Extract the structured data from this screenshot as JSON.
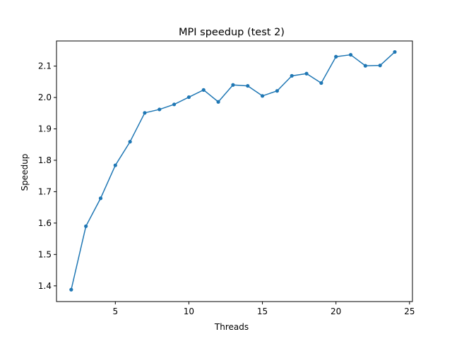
{
  "chart_data": {
    "type": "line",
    "title": "MPI speedup (test 2)",
    "xlabel": "Threads",
    "ylabel": "Speedup",
    "xlim": [
      1,
      25.2
    ],
    "ylim": [
      1.35,
      2.18
    ],
    "xticks": [
      5,
      10,
      15,
      20,
      25
    ],
    "yticks": [
      1.4,
      1.5,
      1.6,
      1.7,
      1.8,
      1.9,
      2.0,
      2.1
    ],
    "grid": false,
    "legend": "none",
    "series": [
      {
        "color": "#1f77b4",
        "marker": "dot",
        "x": [
          2,
          3,
          4,
          5,
          6,
          7,
          8,
          9,
          10,
          11,
          12,
          13,
          14,
          15,
          16,
          17,
          18,
          19,
          20,
          21,
          22,
          23,
          24
        ],
        "y": [
          1.388,
          1.59,
          1.679,
          1.784,
          1.859,
          1.951,
          1.962,
          1.978,
          2.001,
          2.024,
          1.986,
          2.04,
          2.037,
          2.005,
          2.021,
          2.069,
          2.076,
          2.046,
          2.13,
          2.136,
          2.101,
          2.102,
          2.145
        ]
      }
    ]
  }
}
